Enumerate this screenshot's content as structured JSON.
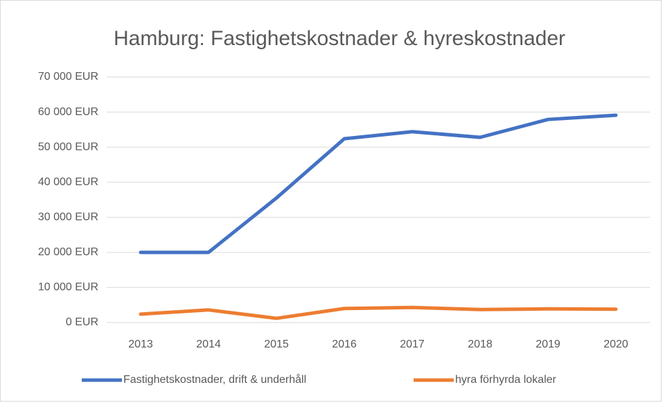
{
  "chart_data": {
    "type": "line",
    "title": "Hamburg: Fastighetskostnader & hyreskostnader",
    "categories": [
      "2013",
      "2014",
      "2015",
      "2016",
      "2017",
      "2018",
      "2019",
      "2020"
    ],
    "series": [
      {
        "name": "Fastighetskostnader, drift & underhåll",
        "color": "#4472c4",
        "values": [
          20000,
          20000,
          35500,
          52400,
          54400,
          52800,
          57900,
          59100
        ]
      },
      {
        "name": "hyra förhyrda lokaler",
        "color": "#ed7d31",
        "values": [
          2400,
          3600,
          1200,
          4000,
          4300,
          3700,
          3900,
          3800
        ]
      }
    ],
    "ylim": [
      0,
      70000
    ],
    "yticks": [
      {
        "value": 0,
        "label": "0 EUR"
      },
      {
        "value": 10000,
        "label": "10 000 EUR"
      },
      {
        "value": 20000,
        "label": "20 000 EUR"
      },
      {
        "value": 30000,
        "label": "30 000 EUR"
      },
      {
        "value": 40000,
        "label": "40 000 EUR"
      },
      {
        "value": 50000,
        "label": "50 000 EUR"
      },
      {
        "value": 60000,
        "label": "60 000 EUR"
      },
      {
        "value": 70000,
        "label": "70 000 EUR"
      }
    ],
    "grid": true,
    "legend": "bottom"
  }
}
